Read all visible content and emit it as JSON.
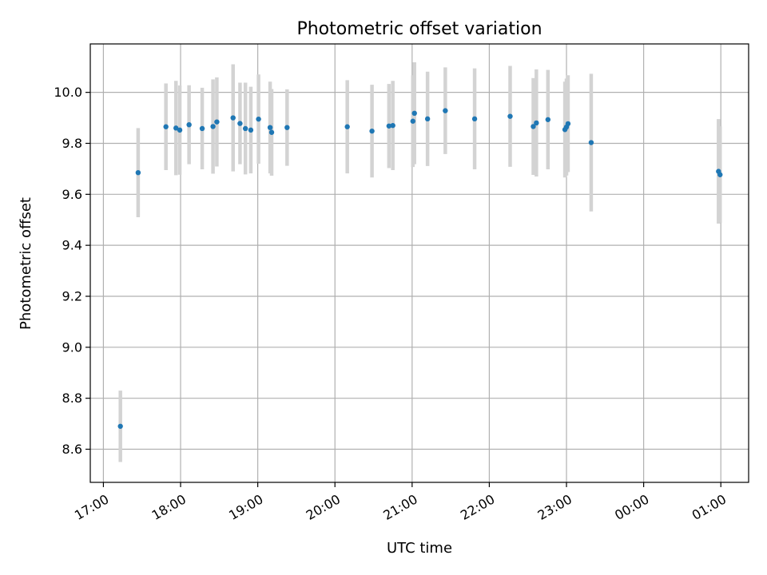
{
  "chart_data": {
    "type": "scatter",
    "title": "Photometric offset variation",
    "xlabel": "UTC time",
    "ylabel": "Photometric offset",
    "x_unit": "hours",
    "xlim": [
      16.83,
      25.36
    ],
    "ylim": [
      8.47,
      10.19
    ],
    "x_ticks": [
      {
        "value": 17,
        "label": "17:00"
      },
      {
        "value": 18,
        "label": "18:00"
      },
      {
        "value": 19,
        "label": "19:00"
      },
      {
        "value": 20,
        "label": "20:00"
      },
      {
        "value": 21,
        "label": "21:00"
      },
      {
        "value": 22,
        "label": "22:00"
      },
      {
        "value": 23,
        "label": "23:00"
      },
      {
        "value": 24,
        "label": "00:00"
      },
      {
        "value": 25,
        "label": "01:00"
      }
    ],
    "y_ticks": [
      {
        "value": 8.6,
        "label": "8.6"
      },
      {
        "value": 8.8,
        "label": "8.8"
      },
      {
        "value": 9.0,
        "label": "9.0"
      },
      {
        "value": 9.2,
        "label": "9.2"
      },
      {
        "value": 9.4,
        "label": "9.4"
      },
      {
        "value": 9.6,
        "label": "9.6"
      },
      {
        "value": 9.8,
        "label": "9.8"
      },
      {
        "value": 10.0,
        "label": "10.0"
      }
    ],
    "grid": true,
    "marker_color": "#1f77b4",
    "errorbar_color": "#d3d3d3",
    "points": [
      {
        "x": 17.22,
        "y": 8.69,
        "err": 0.14
      },
      {
        "x": 17.45,
        "y": 9.685,
        "err": 0.175
      },
      {
        "x": 17.81,
        "y": 9.865,
        "err": 0.17
      },
      {
        "x": 17.94,
        "y": 9.86,
        "err": 0.185
      },
      {
        "x": 17.99,
        "y": 9.852,
        "err": 0.175
      },
      {
        "x": 18.11,
        "y": 9.873,
        "err": 0.155
      },
      {
        "x": 18.28,
        "y": 9.858,
        "err": 0.16
      },
      {
        "x": 18.42,
        "y": 9.866,
        "err": 0.185
      },
      {
        "x": 18.47,
        "y": 9.884,
        "err": 0.175
      },
      {
        "x": 18.68,
        "y": 9.9,
        "err": 0.21
      },
      {
        "x": 18.77,
        "y": 9.878,
        "err": 0.16
      },
      {
        "x": 18.84,
        "y": 9.858,
        "err": 0.18
      },
      {
        "x": 18.91,
        "y": 9.852,
        "err": 0.17
      },
      {
        "x": 19.01,
        "y": 9.895,
        "err": 0.175
      },
      {
        "x": 19.16,
        "y": 9.862,
        "err": 0.18
      },
      {
        "x": 19.18,
        "y": 9.843,
        "err": 0.17
      },
      {
        "x": 19.38,
        "y": 9.862,
        "err": 0.15
      },
      {
        "x": 20.16,
        "y": 9.865,
        "err": 0.183
      },
      {
        "x": 20.48,
        "y": 9.848,
        "err": 0.182
      },
      {
        "x": 20.7,
        "y": 9.868,
        "err": 0.165
      },
      {
        "x": 20.75,
        "y": 9.87,
        "err": 0.175
      },
      {
        "x": 21.01,
        "y": 9.887,
        "err": 0.18
      },
      {
        "x": 21.03,
        "y": 9.918,
        "err": 0.2
      },
      {
        "x": 21.2,
        "y": 9.896,
        "err": 0.185
      },
      {
        "x": 21.43,
        "y": 9.928,
        "err": 0.17
      },
      {
        "x": 21.81,
        "y": 9.896,
        "err": 0.198
      },
      {
        "x": 22.27,
        "y": 9.906,
        "err": 0.198
      },
      {
        "x": 22.57,
        "y": 9.866,
        "err": 0.19
      },
      {
        "x": 22.61,
        "y": 9.88,
        "err": 0.21
      },
      {
        "x": 22.76,
        "y": 9.893,
        "err": 0.195
      },
      {
        "x": 22.98,
        "y": 9.854,
        "err": 0.188
      },
      {
        "x": 23.0,
        "y": 9.864,
        "err": 0.19
      },
      {
        "x": 23.02,
        "y": 9.877,
        "err": 0.19
      },
      {
        "x": 23.32,
        "y": 9.803,
        "err": 0.27
      },
      {
        "x": 24.97,
        "y": 9.69,
        "err": 0.205
      },
      {
        "x": 24.99,
        "y": 9.677,
        "err": 0.19
      }
    ]
  }
}
